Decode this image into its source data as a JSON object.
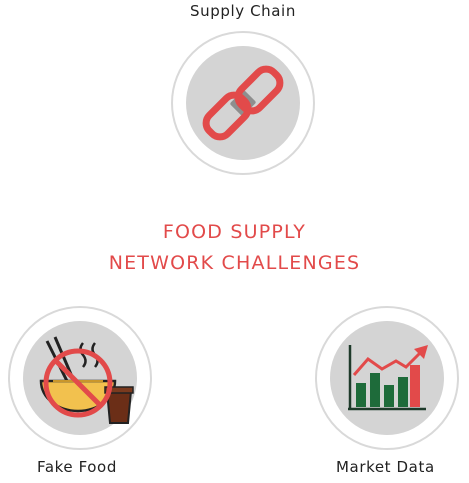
{
  "title": {
    "line1": "FOOD SUPPLY",
    "line2": "NETWORK CHALLENGES"
  },
  "nodes": {
    "supply_chain": {
      "label": "Supply Chain",
      "icon": "chain-link-icon"
    },
    "fake_food": {
      "label": "Fake Food",
      "icon": "no-fake-food-icon"
    },
    "market_data": {
      "label": "Market Data",
      "icon": "bar-chart-trend-icon"
    }
  },
  "colors": {
    "accent": "#e24a4a",
    "circle_fill": "#d4d4d4",
    "circle_border": "#d9d9d9",
    "bar_green": "#1e6b3a",
    "bowl_yellow": "#f2c14e",
    "cup_brown": "#6b2e17"
  }
}
